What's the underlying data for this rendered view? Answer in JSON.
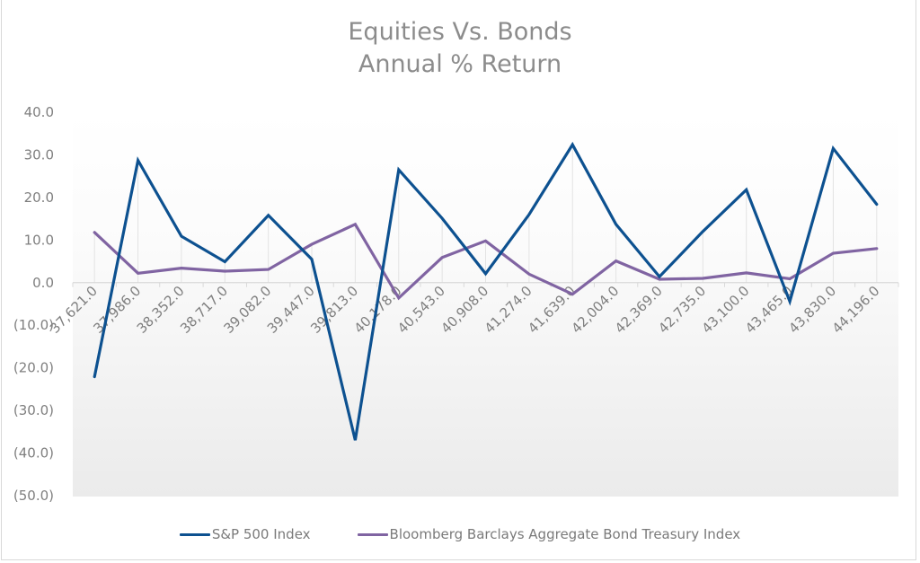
{
  "chart": {
    "title_line1": "Equities Vs. Bonds",
    "title_line2": "Annual % Return",
    "colors": {
      "sp500": "#0d5190",
      "bonds": "#8064a2",
      "axis_text": "#7f7f7f",
      "title_text": "#8c8c8c",
      "gridline": "#e3e3e3"
    }
  },
  "legend": {
    "items": [
      {
        "label": "S&P 500 Index",
        "color": "#0d5190"
      },
      {
        "label": "Bloomberg Barclays Aggregate Bond Treasury Index",
        "color": "#8064a2"
      }
    ]
  },
  "chart_data": {
    "type": "line",
    "title": "Equities Vs. Bonds\nAnnual % Return",
    "xlabel": "",
    "ylabel": "",
    "ylim": [
      -50,
      40
    ],
    "yticks": [
      40,
      30,
      20,
      10,
      0,
      -10,
      -20,
      -30,
      -40,
      -50
    ],
    "ytick_labels": [
      "40.0",
      "30.0",
      "20.0",
      "10.0",
      "0.0",
      "(10.0)",
      "(20.0)",
      "(30.0)",
      "(40.0)",
      "(50.0)"
    ],
    "categories": [
      "37,621.0",
      "37,986.0",
      "38,352.0",
      "38,717.0",
      "39,082.0",
      "39,447.0",
      "39,813.0",
      "40,178.0",
      "40,543.0",
      "40,908.0",
      "41,274.0",
      "41,639.0",
      "42,004.0",
      "42,369.0",
      "42,735.0",
      "43,100.0",
      "43,465.0",
      "43,830.0",
      "44,196.0"
    ],
    "series": [
      {
        "name": "S&P 500 Index",
        "values": [
          -22.1,
          28.7,
          10.9,
          4.9,
          15.8,
          5.5,
          -37.0,
          26.5,
          15.1,
          2.1,
          16.0,
          32.4,
          13.7,
          1.4,
          12.0,
          21.8,
          -4.4,
          31.5,
          18.4
        ]
      },
      {
        "name": "Bloomberg Barclays Aggregate Bond Treasury Index",
        "values": [
          11.8,
          2.2,
          3.4,
          2.7,
          3.1,
          9.0,
          13.7,
          -3.6,
          5.9,
          9.8,
          2.0,
          -2.7,
          5.1,
          0.8,
          1.0,
          2.3,
          0.9,
          6.9,
          8.0
        ]
      }
    ],
    "grid": {
      "vertical": true,
      "horizontal": false
    },
    "legend_position": "bottom",
    "x_label_rotation": -45
  }
}
